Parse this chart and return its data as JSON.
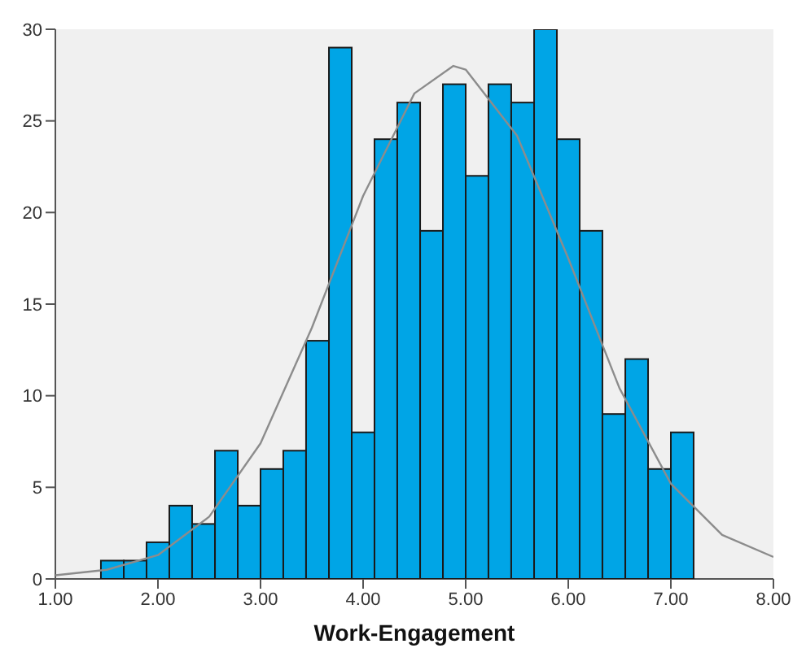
{
  "chart_data": {
    "type": "histogram",
    "xlabel": "Work-Engagement",
    "bins": [
      1.444,
      1.667,
      1.889,
      2.111,
      2.333,
      2.556,
      2.778,
      3.0,
      3.222,
      3.444,
      3.667,
      3.889,
      4.111,
      4.333,
      4.556,
      4.778,
      5.0,
      5.222,
      5.444,
      5.667,
      5.889,
      6.111,
      6.333,
      6.556,
      6.778,
      7.0,
      7.222
    ],
    "values": [
      1,
      1,
      2,
      4,
      3,
      7,
      4,
      6,
      7,
      13,
      29,
      8,
      24,
      26,
      19,
      27,
      22,
      27,
      26,
      30,
      24,
      19,
      9,
      12,
      6,
      8
    ],
    "color": "#00a5e6",
    "series": [
      {
        "type": "line",
        "color": "#8c8c8c",
        "x": [
          1,
          1.5,
          2,
          2.5,
          3,
          3.5,
          4,
          4.5,
          4.88,
          5,
          5.5,
          6,
          6.5,
          7,
          7.5,
          8
        ],
        "values": [
          0.2,
          0.5,
          1.3,
          3.4,
          7.4,
          13.7,
          20.9,
          26.5,
          28,
          27.8,
          24.2,
          17.5,
          10.4,
          5.2,
          2.4,
          1.2
        ]
      }
    ],
    "xlim": [
      1,
      8
    ],
    "xticks": [
      {
        "value": 1,
        "label": "1.00"
      },
      {
        "value": 2,
        "label": "2.00"
      },
      {
        "value": 3,
        "label": "3.00"
      },
      {
        "value": 4,
        "label": "4.00"
      },
      {
        "value": 5,
        "label": "5.00"
      },
      {
        "value": 6,
        "label": "6.00"
      },
      {
        "value": 7,
        "label": "7.00"
      },
      {
        "value": 8,
        "label": "8.00"
      }
    ],
    "ylim": [
      0,
      30
    ],
    "yticks": [
      0,
      5,
      10,
      15,
      20,
      25,
      30
    ],
    "grid": false,
    "legend": false
  }
}
